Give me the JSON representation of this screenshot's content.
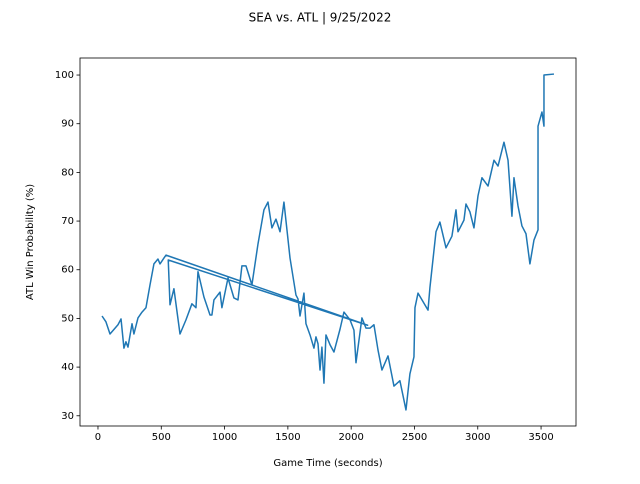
{
  "chart_data": {
    "type": "line",
    "title": "SEA vs. ATL | 9/25/2022",
    "xlabel": "Game Time (seconds)",
    "ylabel": "ATL Win Probability (%)",
    "color": "#1f77b4",
    "x": [
      32,
      63,
      95,
      158,
      182,
      205,
      221,
      237,
      269,
      284,
      316,
      348,
      379,
      411,
      442,
      474,
      490,
      521,
      537,
      2130,
      555,
      569,
      600,
      648,
      695,
      742,
      774,
      790,
      837,
      885,
      900,
      916,
      964,
      979,
      1027,
      1074,
      1106,
      1137,
      1169,
      1216,
      1264,
      1311,
      1343,
      1374,
      1406,
      1438,
      1469,
      1517,
      1564,
      1580,
      1596,
      1627,
      1643,
      1675,
      1706,
      1722,
      1738,
      1754,
      1769,
      1785,
      1801,
      1833,
      1864,
      1912,
      1943,
      1991,
      2022,
      2038,
      2085,
      2117,
      2148,
      2180,
      2212,
      2243,
      2291,
      2338,
      2385,
      2433,
      2464,
      2496,
      2504,
      2528,
      2607,
      2622,
      2670,
      2701,
      2749,
      2796,
      2828,
      2844,
      2891,
      2907,
      2938,
      2970,
      3002,
      3033,
      3081,
      3128,
      3160,
      3207,
      3239,
      3270,
      3286,
      3318,
      3349,
      3381,
      3412,
      3444,
      3476,
      3476,
      3507,
      3523,
      3523,
      3602
    ],
    "values": [
      50.5,
      49.3,
      46.8,
      48.7,
      49.9,
      43.9,
      45.2,
      44.1,
      48.9,
      46.8,
      50.1,
      51.3,
      52.2,
      56.9,
      61.2,
      62.2,
      61.2,
      62.4,
      63.0,
      48.6,
      62.0,
      52.8,
      56.1,
      46.8,
      49.7,
      53.0,
      52.2,
      59.6,
      54.4,
      50.7,
      50.7,
      53.8,
      55.4,
      52.2,
      58.3,
      54.2,
      53.8,
      60.8,
      60.8,
      56.9,
      65.3,
      72.3,
      73.9,
      68.6,
      70.4,
      67.8,
      73.9,
      62.4,
      54.8,
      54.0,
      50.5,
      55.2,
      48.9,
      46.6,
      43.9,
      46.2,
      44.8,
      39.4,
      44.1,
      36.7,
      46.6,
      44.6,
      43.1,
      47.8,
      51.3,
      49.7,
      47.6,
      40.9,
      50.1,
      48.0,
      48.0,
      48.7,
      43.5,
      39.4,
      42.3,
      36.1,
      37.2,
      31.2,
      38.6,
      42.1,
      52.2,
      55.2,
      51.7,
      56.3,
      67.8,
      69.8,
      64.5,
      66.9,
      72.3,
      67.8,
      70.2,
      73.5,
      71.9,
      68.6,
      75.2,
      78.9,
      77.2,
      82.5,
      81.3,
      86.2,
      82.5,
      71.0,
      78.9,
      73.1,
      69.0,
      67.4,
      61.2,
      66.1,
      68.2,
      89.5,
      92.4,
      89.5,
      100,
      100.2
    ],
    "xlim": [
      -142,
      3776
    ],
    "ylim": [
      27.9,
      103.5
    ],
    "xticks": [
      0,
      500,
      1000,
      1500,
      2000,
      2500,
      3000,
      3500
    ],
    "yticks": [
      30,
      40,
      50,
      60,
      70,
      80,
      90,
      100
    ]
  }
}
